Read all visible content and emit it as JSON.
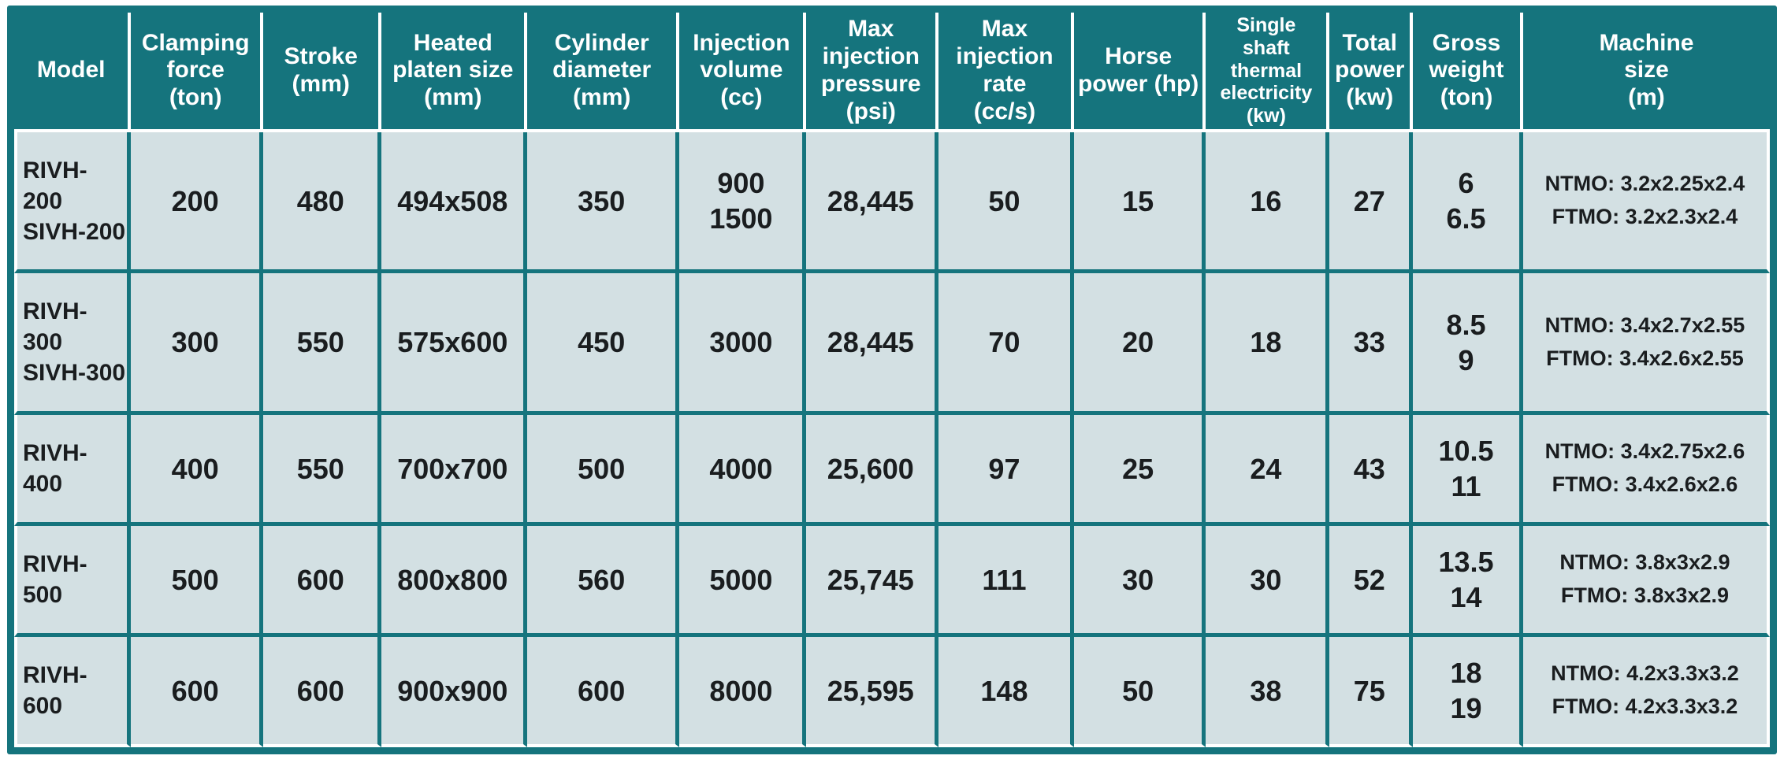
{
  "table": {
    "columns": [
      {
        "id": "model",
        "label": "Model"
      },
      {
        "id": "clamping_force",
        "label": "Clamping\nforce\n(ton)"
      },
      {
        "id": "stroke",
        "label": "Stroke\n(mm)"
      },
      {
        "id": "heated_platen_size",
        "label": "Heated\nplaten size\n(mm)"
      },
      {
        "id": "cylinder_diameter",
        "label": "Cylinder\ndiameter\n(mm)"
      },
      {
        "id": "injection_volume",
        "label": "Injection\nvolume\n(cc)"
      },
      {
        "id": "max_injection_pressure",
        "label": "Max\ninjection\npressure\n(psi)"
      },
      {
        "id": "max_injection_rate",
        "label": "Max\ninjection\nrate\n(cc/s)"
      },
      {
        "id": "horse_power",
        "label": "Horse\npower (hp)"
      },
      {
        "id": "single_shaft_thermal_electricity",
        "label": "Single\nshaft\nthermal\nelectricity\n(kw)",
        "small": true
      },
      {
        "id": "total_power",
        "label": "Total\npower\n(kw)"
      },
      {
        "id": "gross_weight",
        "label": "Gross\nweight\n(ton)"
      },
      {
        "id": "machine_size",
        "label": "Machine\nsize\n(m)"
      }
    ],
    "rows": [
      {
        "cells": [
          "RIVH-200\nSIVH-200",
          "200",
          "480",
          "494x508",
          "350",
          "900\n1500",
          "28,445",
          "50",
          "15",
          "16",
          "27",
          "6\n6.5",
          "NTMO: 3.2x2.25x2.4\nFTMO: 3.2x2.3x2.4"
        ]
      },
      {
        "cells": [
          "RIVH-300\nSIVH-300",
          "300",
          "550",
          "575x600",
          "450",
          "3000",
          "28,445",
          "70",
          "20",
          "18",
          "33",
          "8.5\n9",
          "NTMO: 3.4x2.7x2.55\nFTMO: 3.4x2.6x2.55"
        ]
      },
      {
        "cells": [
          "RIVH-400",
          "400",
          "550",
          "700x700",
          "500",
          "4000",
          "25,600",
          "97",
          "25",
          "24",
          "43",
          "10.5\n11",
          "NTMO: 3.4x2.75x2.6\nFTMO: 3.4x2.6x2.6"
        ]
      },
      {
        "cells": [
          "RIVH-500",
          "500",
          "600",
          "800x800",
          "560",
          "5000",
          "25,745",
          "111",
          "30",
          "30",
          "52",
          "13.5\n14",
          "NTMO: 3.8x3x2.9\nFTMO: 3.8x3x2.9"
        ]
      },
      {
        "cells": [
          "RIVH-600",
          "600",
          "600",
          "900x900",
          "600",
          "8000",
          "25,595",
          "148",
          "50",
          "38",
          "75",
          "18\n19",
          "NTMO: 4.2x3.3x3.2\nFTMO: 4.2x3.3x3.2"
        ]
      }
    ]
  },
  "chart_data": {
    "type": "table",
    "title": "",
    "categories": [
      "RIVH-200 / SIVH-200",
      "RIVH-300 / SIVH-300",
      "RIVH-400",
      "RIVH-500",
      "RIVH-600"
    ],
    "series": [
      {
        "name": "Clamping force (ton)",
        "values": [
          200,
          300,
          400,
          500,
          600
        ]
      },
      {
        "name": "Stroke (mm)",
        "values": [
          480,
          550,
          550,
          600,
          600
        ]
      },
      {
        "name": "Heated platen size (mm)",
        "values": [
          "494x508",
          "575x600",
          "700x700",
          "800x800",
          "900x900"
        ]
      },
      {
        "name": "Cylinder diameter (mm)",
        "values": [
          350,
          450,
          500,
          560,
          600
        ]
      },
      {
        "name": "Injection volume (cc)",
        "values": [
          "900 / 1500",
          "3000",
          "4000",
          "5000",
          "8000"
        ]
      },
      {
        "name": "Max injection pressure (psi)",
        "values": [
          "28,445",
          "28,445",
          "25,600",
          "25,745",
          "25,595"
        ]
      },
      {
        "name": "Max injection rate (cc/s)",
        "values": [
          50,
          70,
          97,
          111,
          148
        ]
      },
      {
        "name": "Horse power (hp)",
        "values": [
          15,
          20,
          25,
          30,
          50
        ]
      },
      {
        "name": "Single shaft thermal electricity (kw)",
        "values": [
          16,
          18,
          24,
          30,
          38
        ]
      },
      {
        "name": "Total power (kw)",
        "values": [
          27,
          33,
          43,
          52,
          75
        ]
      },
      {
        "name": "Gross weight (ton)",
        "values": [
          "6 / 6.5",
          "8.5 / 9",
          "10.5 / 11",
          "13.5 / 14",
          "18 / 19"
        ]
      },
      {
        "name": "Machine size (m)",
        "values": [
          "NTMO: 3.2x2.25x2.4 / FTMO: 3.2x2.3x2.4",
          "NTMO: 3.4x2.7x2.55 / FTMO: 3.4x2.6x2.55",
          "NTMO: 3.4x2.75x2.6 / FTMO: 3.4x2.6x2.6",
          "NTMO: 3.8x3x2.9 / FTMO: 3.8x3x2.9",
          "NTMO: 4.2x3.3x3.2 / FTMO: 4.2x3.3x3.2"
        ]
      }
    ]
  },
  "colors": {
    "header_bg": "#15747d",
    "grid": "#15747d",
    "cell_bg": "#d3e0e3",
    "header_text": "#ffffff",
    "cell_text": "#1a1d1f",
    "separator": "#ffffff"
  }
}
